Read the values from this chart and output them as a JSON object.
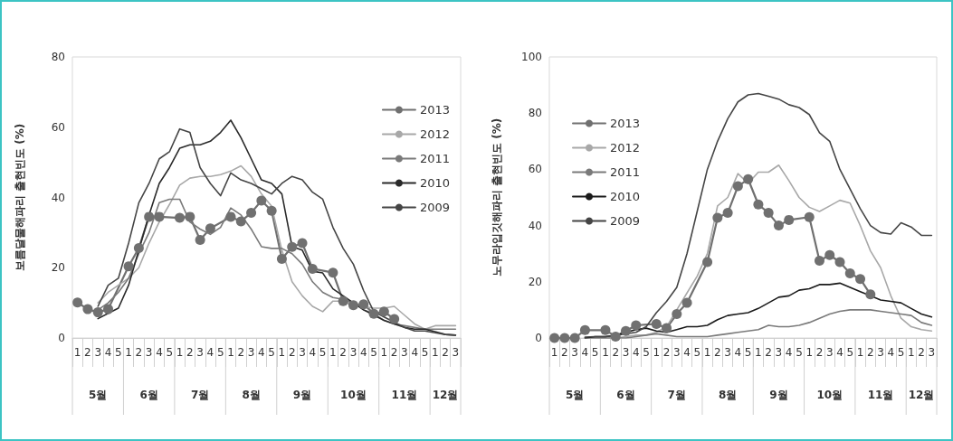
{
  "chart_data": [
    {
      "type": "line",
      "ylabel": "보름달물해파리 출현빈도 (%)",
      "categories": [
        "1",
        "2",
        "3",
        "4",
        "5",
        "1",
        "2",
        "3",
        "4",
        "5",
        "1",
        "2",
        "3",
        "4",
        "5",
        "1",
        "2",
        "3",
        "4",
        "5",
        "1",
        "2",
        "3",
        "4",
        "5",
        "1",
        "2",
        "3",
        "4",
        "5",
        "1",
        "2",
        "3",
        "4",
        "5",
        "1",
        "2",
        "3"
      ],
      "annotations": [
        "5월",
        "6월",
        "7월",
        "8월",
        "9월",
        "10월",
        "11월",
        "12월"
      ],
      "ylim": [
        0,
        80
      ],
      "yticks": [
        0,
        20,
        40,
        60,
        80
      ],
      "grid": false,
      "legend": "right",
      "series": [
        {
          "name": "2013",
          "color": "#707070",
          "marker": "circle",
          "values": [
            10.1,
            8.2,
            7.3,
            8.2,
            null,
            20.4,
            25.6,
            34.5,
            34.5,
            null,
            34.2,
            34.5,
            27.9,
            31.2,
            null,
            34.5,
            33.2,
            35.6,
            39.1,
            36.2,
            22.5,
            25.9,
            27,
            19.7,
            null,
            18.6,
            10.5,
            9.3,
            9.6,
            6.9,
            7.5,
            5.4,
            null,
            null,
            null,
            null,
            null,
            null
          ]
        },
        {
          "name": "2012",
          "color": "#a8a8a8",
          "marker": "none",
          "values": [
            null,
            null,
            10,
            13,
            15,
            17,
            20,
            27,
            33,
            38,
            43.5,
            45.5,
            46,
            46,
            46.5,
            47.5,
            49,
            46,
            41,
            37.5,
            25,
            16,
            12,
            9,
            7.5,
            10.5,
            10.5,
            9.5,
            9,
            8.5,
            8.5,
            9,
            6.5,
            4,
            2.5,
            3.5,
            3.5,
            3.5
          ]
        },
        {
          "name": "2011",
          "color": "#7a7a7a",
          "marker": "none",
          "values": [
            null,
            null,
            8,
            10,
            13,
            17,
            24,
            30,
            38.5,
            39.5,
            39.5,
            33,
            31,
            29.5,
            31.5,
            37,
            35,
            31,
            26,
            25.5,
            25.5,
            24,
            21,
            16,
            13,
            11.5,
            11,
            10,
            8,
            7,
            5,
            4,
            3.5,
            3,
            2.5,
            2.5,
            2.5,
            2.5
          ]
        },
        {
          "name": "2010",
          "color": "#2a2a2a",
          "marker": "none",
          "values": [
            null,
            null,
            5.5,
            7,
            8.5,
            15,
            25,
            35,
            44,
            48.5,
            54,
            55,
            55,
            56,
            58.5,
            62,
            57,
            51,
            45,
            44,
            41,
            26,
            25,
            19,
            18.5,
            14,
            12,
            10,
            8,
            6.5,
            5,
            4,
            3,
            2.5,
            2.5,
            1.8,
            1,
            0.8
          ]
        },
        {
          "name": "2009",
          "color": "#454545",
          "marker": "none",
          "values": [
            null,
            null,
            9,
            15,
            17,
            27,
            38.5,
            44,
            51,
            53,
            59.5,
            58.5,
            48.5,
            44,
            40.5,
            47,
            45,
            44,
            42.5,
            41,
            44,
            46,
            45,
            41.5,
            39.5,
            31.5,
            25.5,
            21,
            13.5,
            7.5,
            6,
            4.5,
            3,
            2,
            2,
            1.5,
            1,
            0.8
          ]
        }
      ]
    },
    {
      "type": "line",
      "ylabel": "노무라입깃해파리 출현빈도 (%)",
      "categories": [
        "1",
        "2",
        "3",
        "4",
        "5",
        "1",
        "2",
        "3",
        "4",
        "5",
        "1",
        "2",
        "3",
        "4",
        "5",
        "1",
        "2",
        "3",
        "4",
        "5",
        "1",
        "2",
        "3",
        "4",
        "5",
        "1",
        "2",
        "3",
        "4",
        "5",
        "1",
        "2",
        "3",
        "4",
        "5",
        "1",
        "2",
        "3"
      ],
      "annotations": [
        "5월",
        "6월",
        "7월",
        "8월",
        "9월",
        "10월",
        "11월",
        "12월"
      ],
      "ylim": [
        0,
        100
      ],
      "yticks": [
        0,
        20,
        40,
        60,
        80,
        100
      ],
      "grid": false,
      "legend": "top left",
      "series": [
        {
          "name": "2013",
          "color": "#707070",
          "marker": "circle",
          "values": [
            0,
            0,
            0,
            2.8,
            null,
            2.8,
            0.5,
            2.5,
            4.5,
            null,
            5,
            3.5,
            8.5,
            12.5,
            null,
            27,
            42.8,
            44.5,
            54,
            56.5,
            47.5,
            44.5,
            40,
            42,
            null,
            43,
            27.5,
            29.5,
            27,
            23,
            21,
            15.5,
            null,
            null,
            null,
            null,
            null,
            null
          ]
        },
        {
          "name": "2012",
          "color": "#a8a8a8",
          "marker": "none",
          "values": [
            null,
            null,
            null,
            0,
            0,
            0,
            0,
            0.5,
            1,
            1,
            2,
            4,
            10,
            16,
            22,
            30,
            47,
            50,
            58.5,
            55,
            59,
            59,
            61.5,
            56,
            50,
            46.5,
            45,
            47,
            49,
            48,
            40,
            31,
            25,
            15,
            7,
            4,
            3,
            2.5
          ]
        },
        {
          "name": "2011",
          "color": "#7a7a7a",
          "marker": "none",
          "values": [
            null,
            null,
            null,
            0,
            0,
            0,
            0,
            0,
            0.5,
            1,
            1.5,
            1,
            0.5,
            0.5,
            0.5,
            0.5,
            1,
            1.5,
            2,
            2.5,
            3,
            4.5,
            4,
            4,
            4.5,
            5.5,
            7,
            8.5,
            9.5,
            10,
            10,
            10,
            9.5,
            9,
            8.5,
            8,
            5.5,
            4.5
          ]
        },
        {
          "name": "2010",
          "color": "#1a1a1a",
          "marker": "none",
          "values": [
            null,
            null,
            null,
            0,
            0.5,
            0.5,
            1,
            2,
            3,
            3.5,
            2.5,
            2,
            3,
            4,
            4,
            4.5,
            6.5,
            8,
            8.5,
            9,
            10.5,
            12.5,
            14.5,
            15,
            17,
            17.5,
            19,
            19,
            19.5,
            18,
            16.5,
            15,
            13.5,
            13,
            12.5,
            10.5,
            8.5,
            7.5
          ]
        },
        {
          "name": "2009",
          "color": "#454545",
          "marker": "none",
          "values": [
            null,
            null,
            null,
            0.3,
            0.5,
            0.5,
            0.8,
            1.5,
            2,
            4,
            9,
            13,
            18,
            30,
            45,
            60,
            70,
            78,
            84,
            86.5,
            87,
            86,
            85,
            83,
            82,
            79.5,
            73,
            70,
            60,
            53,
            46,
            40,
            37.5,
            37,
            41,
            39.5,
            36.5,
            36.5
          ]
        }
      ]
    }
  ]
}
